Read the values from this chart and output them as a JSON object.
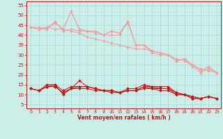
{
  "xlabel": "Vent moyen/en rafales ( km/h )",
  "background_color": "#cceee8",
  "grid_color": "#aadddd",
  "x": [
    0,
    1,
    2,
    3,
    4,
    5,
    6,
    7,
    8,
    9,
    10,
    11,
    12,
    13,
    14,
    15,
    16,
    17,
    18,
    19,
    20,
    21,
    22,
    23
  ],
  "series_light": [
    [
      44,
      44,
      43,
      47,
      42,
      43,
      42,
      42,
      41,
      40,
      40,
      40,
      47,
      35,
      35,
      32,
      31,
      30,
      27,
      28,
      24,
      21,
      23,
      21
    ],
    [
      44,
      43,
      43,
      46,
      43,
      52,
      43,
      42,
      42,
      40,
      42,
      41,
      46,
      35,
      35,
      31,
      30,
      30,
      27,
      28,
      25,
      22,
      24,
      21
    ],
    [
      44,
      43,
      44,
      46,
      43,
      52,
      43,
      42,
      42,
      40,
      42,
      41,
      47,
      35,
      35,
      32,
      31,
      30,
      27,
      28,
      25,
      22,
      24,
      21
    ],
    [
      44,
      43,
      44,
      43,
      43,
      42,
      41,
      39,
      38,
      37,
      36,
      35,
      34,
      33,
      33,
      32,
      31,
      30,
      28,
      27,
      25,
      23,
      22,
      21
    ]
  ],
  "series_dark": [
    [
      13,
      12,
      15,
      15,
      10,
      13,
      17,
      14,
      13,
      12,
      12,
      11,
      13,
      13,
      15,
      14,
      14,
      14,
      11,
      10,
      8,
      8,
      9,
      8
    ],
    [
      13,
      12,
      14,
      15,
      12,
      14,
      14,
      14,
      13,
      12,
      12,
      11,
      12,
      12,
      14,
      13,
      13,
      13,
      10,
      10,
      8,
      8,
      9,
      8
    ],
    [
      13,
      12,
      14,
      14,
      11,
      13,
      14,
      14,
      13,
      12,
      12,
      11,
      12,
      12,
      14,
      14,
      13,
      13,
      11,
      10,
      9,
      8,
      9,
      8
    ],
    [
      13,
      12,
      14,
      14,
      11,
      13,
      13,
      13,
      12,
      12,
      11,
      11,
      12,
      12,
      13,
      13,
      12,
      12,
      10,
      10,
      9,
      8,
      9,
      8
    ]
  ],
  "light_color": "#f0a0a0",
  "dark_color": "#cc1010",
  "yticks": [
    5,
    10,
    15,
    20,
    25,
    30,
    35,
    40,
    45,
    50,
    55
  ],
  "ylim": [
    3,
    57
  ],
  "xlim": [
    -0.5,
    23.5
  ]
}
